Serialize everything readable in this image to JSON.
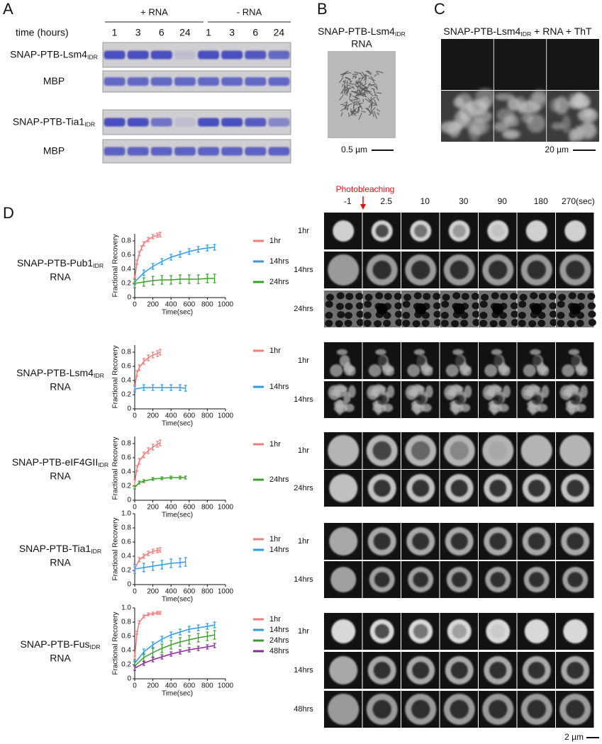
{
  "panel_a": {
    "label": "A",
    "groups": [
      "+ RNA",
      "- RNA"
    ],
    "time_label": "time (hours)",
    "times": [
      "1",
      "3",
      "6",
      "24",
      "1",
      "3",
      "6",
      "24"
    ],
    "rows": [
      {
        "name": "SNAP-PTB-Lsm4",
        "sub": "IDR"
      },
      {
        "name": "MBP"
      },
      {
        "name": "SNAP-PTB-Tia1",
        "sub": "IDR"
      },
      {
        "name": "MBP"
      }
    ]
  },
  "panel_b": {
    "label": "B",
    "title": {
      "name": "SNAP-PTB-Lsm4",
      "sub": "IDR"
    },
    "subtitle": "RNA",
    "scale_bar": "0.5 µm"
  },
  "panel_c": {
    "label": "C",
    "title": {
      "name": "SNAP-PTB-Lsm4",
      "sub": "IDR",
      "suffix": " + RNA + ThT"
    },
    "scale_bar": "20 µm"
  },
  "panel_d": {
    "label": "D",
    "photobleaching": "Photobleaching",
    "frame_times": [
      "-1",
      "2.5",
      "10",
      "30",
      "90",
      "180",
      "270(sec)"
    ],
    "scale_bar": "2 µm",
    "rows": [
      {
        "name": "SNAP-PTB-Pub1",
        "sub": "IDR",
        "line2": "RNA",
        "image_rows": [
          "1hr",
          "14hrs",
          "24hrs"
        ]
      },
      {
        "name": "SNAP-PTB-Lsm4",
        "sub": "IDR",
        "line2": "RNA",
        "image_rows": [
          "1hr",
          "14hrs"
        ]
      },
      {
        "name": "SNAP-PTB-eIF4GII",
        "sub": "IDR",
        "line2": "RNA",
        "image_rows": [
          "1hr",
          "24hrs"
        ]
      },
      {
        "name": "SNAP-PTB-Tia1",
        "sub": "IDR",
        "line2": "RNA",
        "image_rows": [
          "1hr",
          "14hrs"
        ]
      },
      {
        "name": "SNAP-PTB-Fus",
        "sub": "IDR",
        "line2": "RNA",
        "image_rows": [
          "1hr",
          "14hrs",
          "48hrs"
        ]
      }
    ]
  },
  "chart_data": [
    {
      "type": "line",
      "ylabel": "Fractional Recovery",
      "xlabel": "Time(sec)",
      "xlim": [
        0,
        1000
      ],
      "xticks": [
        0,
        200,
        400,
        600,
        800,
        1000
      ],
      "ylim": [
        0,
        0.9
      ],
      "yticks": [
        0,
        0.2,
        0.4,
        0.6,
        0.8
      ],
      "series": [
        {
          "name": "1hr",
          "color": "#f07c7c",
          "x": [
            0,
            25,
            50,
            75,
            100,
            150,
            200,
            250,
            280
          ],
          "values": [
            0.25,
            0.5,
            0.62,
            0.7,
            0.76,
            0.82,
            0.86,
            0.88,
            0.89
          ],
          "errors": [
            0.03,
            0.03,
            0.03,
            0.03,
            0.03,
            0.03,
            0.03,
            0.03,
            0.03
          ]
        },
        {
          "name": "14hrs",
          "color": "#2e9be6",
          "x": [
            0,
            100,
            200,
            300,
            400,
            500,
            600,
            700,
            800,
            880
          ],
          "values": [
            0.22,
            0.35,
            0.44,
            0.51,
            0.57,
            0.61,
            0.65,
            0.68,
            0.7,
            0.71
          ],
          "errors": [
            0.04,
            0.04,
            0.04,
            0.04,
            0.04,
            0.04,
            0.04,
            0.04,
            0.04,
            0.04
          ]
        },
        {
          "name": "24hrs",
          "color": "#3aa02a",
          "x": [
            0,
            100,
            200,
            300,
            400,
            500,
            600,
            700,
            800,
            880
          ],
          "values": [
            0.2,
            0.22,
            0.24,
            0.25,
            0.25,
            0.26,
            0.26,
            0.26,
            0.27,
            0.27
          ],
          "errors": [
            0.06,
            0.06,
            0.06,
            0.06,
            0.06,
            0.06,
            0.06,
            0.06,
            0.06,
            0.06
          ]
        }
      ]
    },
    {
      "type": "line",
      "ylabel": "Fractional Recovery",
      "xlabel": "Time(sec)",
      "xlim": [
        0,
        1000
      ],
      "xticks": [
        0,
        200,
        400,
        600,
        800,
        1000
      ],
      "ylim": [
        0,
        0.9
      ],
      "yticks": [
        0,
        0.2,
        0.4,
        0.6,
        0.8
      ],
      "series": [
        {
          "name": "1hr",
          "color": "#f07c7c",
          "x": [
            0,
            25,
            50,
            100,
            150,
            200,
            250,
            280
          ],
          "values": [
            0.3,
            0.5,
            0.58,
            0.67,
            0.72,
            0.76,
            0.78,
            0.8
          ],
          "errors": [
            0.04,
            0.04,
            0.04,
            0.04,
            0.04,
            0.04,
            0.04,
            0.04
          ]
        },
        {
          "name": "14hrs",
          "color": "#2e9be6",
          "x": [
            0,
            100,
            200,
            300,
            400,
            500,
            560
          ],
          "values": [
            0.28,
            0.3,
            0.3,
            0.3,
            0.3,
            0.3,
            0.29
          ],
          "errors": [
            0.04,
            0.04,
            0.04,
            0.04,
            0.04,
            0.04,
            0.04
          ]
        }
      ]
    },
    {
      "type": "line",
      "ylabel": "Fractional Recovery",
      "xlabel": "Time(sec)",
      "xlim": [
        0,
        1000
      ],
      "xticks": [
        0,
        200,
        400,
        600,
        800,
        1000
      ],
      "ylim": [
        0,
        0.9
      ],
      "yticks": [
        0,
        0.2,
        0.4,
        0.6,
        0.8
      ],
      "series": [
        {
          "name": "1hr",
          "color": "#f07c7c",
          "x": [
            0,
            25,
            50,
            100,
            150,
            200,
            250,
            280
          ],
          "values": [
            0.25,
            0.45,
            0.55,
            0.64,
            0.7,
            0.75,
            0.79,
            0.81
          ],
          "errors": [
            0.04,
            0.04,
            0.04,
            0.04,
            0.04,
            0.04,
            0.04,
            0.04
          ]
        },
        {
          "name": "24hrs",
          "color": "#3aa02a",
          "x": [
            0,
            50,
            100,
            200,
            300,
            400,
            500,
            560
          ],
          "values": [
            0.18,
            0.25,
            0.27,
            0.3,
            0.31,
            0.32,
            0.32,
            0.32
          ],
          "errors": [
            0.02,
            0.02,
            0.02,
            0.02,
            0.02,
            0.02,
            0.02,
            0.02
          ]
        }
      ]
    },
    {
      "type": "line",
      "ylabel": "Fractional Recovery",
      "xlabel": "Time(sec)",
      "xlim": [
        0,
        1000
      ],
      "xticks": [
        0,
        200,
        400,
        600,
        800,
        1000
      ],
      "ylim": [
        0,
        1.0
      ],
      "yticks": [
        0,
        0.2,
        0.4,
        0.6,
        0.8,
        {
          "value": 1,
          "label": "1.0"
        }
      ],
      "series": [
        {
          "name": "1hr",
          "color": "#f07c7c",
          "x": [
            0,
            50,
            100,
            150,
            200,
            250,
            280
          ],
          "values": [
            0.22,
            0.35,
            0.4,
            0.44,
            0.47,
            0.48,
            0.49
          ],
          "errors": [
            0.03,
            0.03,
            0.03,
            0.03,
            0.03,
            0.03,
            0.03
          ]
        },
        {
          "name": "14hrs",
          "color": "#2e9be6",
          "x": [
            0,
            100,
            200,
            300,
            400,
            500,
            560
          ],
          "values": [
            0.22,
            0.24,
            0.26,
            0.28,
            0.3,
            0.31,
            0.32
          ],
          "errors": [
            0.06,
            0.06,
            0.06,
            0.06,
            0.06,
            0.06,
            0.06
          ]
        }
      ]
    },
    {
      "type": "line",
      "ylabel": "Fractional Recovery",
      "xlabel": "Time(sec)",
      "xlim": [
        0,
        1000
      ],
      "xticks": [
        0,
        200,
        400,
        600,
        800,
        1000
      ],
      "ylim": [
        0,
        1.0
      ],
      "yticks": [
        0,
        0.2,
        0.4,
        0.6,
        0.8,
        {
          "value": 1,
          "label": "1.0"
        }
      ],
      "series": [
        {
          "name": "1hr",
          "color": "#f07c7c",
          "x": [
            0,
            25,
            50,
            100,
            150,
            200,
            250,
            280
          ],
          "values": [
            0.3,
            0.65,
            0.8,
            0.88,
            0.91,
            0.92,
            0.93,
            0.93
          ],
          "errors": [
            0.02,
            0.02,
            0.02,
            0.02,
            0.02,
            0.02,
            0.02,
            0.02
          ]
        },
        {
          "name": "14hrs",
          "color": "#2e9be6",
          "x": [
            0,
            100,
            200,
            300,
            400,
            500,
            600,
            700,
            800,
            880
          ],
          "values": [
            0.22,
            0.38,
            0.48,
            0.56,
            0.62,
            0.66,
            0.7,
            0.72,
            0.74,
            0.76
          ],
          "errors": [
            0.04,
            0.04,
            0.04,
            0.04,
            0.04,
            0.04,
            0.04,
            0.04,
            0.04,
            0.04
          ]
        },
        {
          "name": "24hrs",
          "color": "#3aa02a",
          "x": [
            0,
            100,
            200,
            300,
            400,
            500,
            600,
            700,
            800,
            880
          ],
          "values": [
            0.18,
            0.3,
            0.37,
            0.43,
            0.48,
            0.52,
            0.55,
            0.58,
            0.6,
            0.62
          ],
          "errors": [
            0.06,
            0.06,
            0.06,
            0.06,
            0.06,
            0.06,
            0.06,
            0.06,
            0.06,
            0.06
          ]
        },
        {
          "name": "48hrs",
          "color": "#8a2a9a",
          "x": [
            0,
            100,
            200,
            300,
            400,
            500,
            600,
            700,
            800,
            880
          ],
          "values": [
            0.15,
            0.22,
            0.27,
            0.31,
            0.35,
            0.38,
            0.41,
            0.43,
            0.45,
            0.47
          ],
          "errors": [
            0.03,
            0.03,
            0.03,
            0.03,
            0.03,
            0.03,
            0.03,
            0.03,
            0.03,
            0.03
          ]
        }
      ]
    }
  ]
}
